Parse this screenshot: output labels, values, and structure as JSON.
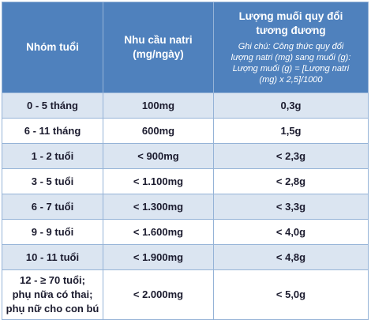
{
  "table": {
    "header": [
      [
        "Nhóm tuổi"
      ],
      [
        "Nhu cầu natri",
        "(mg/ngày)"
      ],
      [
        "Lượng muối quy đổi",
        "tương đương"
      ]
    ],
    "note": [
      "Ghi chú: Công thức quy đổi",
      "lượng natri (mg) sang muối (g):",
      "Lượng muối (g) = [Lượng natri",
      "(mg) x 2,5]/1000"
    ],
    "rows": [
      [
        [
          "0 - 5 tháng"
        ],
        [
          "100mg"
        ],
        [
          "0,3g"
        ]
      ],
      [
        [
          "6 - 11 tháng"
        ],
        [
          "600mg"
        ],
        [
          "1,5g"
        ]
      ],
      [
        [
          "1 - 2 tuổi"
        ],
        [
          "< 900mg"
        ],
        [
          "< 2,3g"
        ]
      ],
      [
        [
          "3 - 5 tuổi"
        ],
        [
          "< 1.100mg"
        ],
        [
          "< 2,8g"
        ]
      ],
      [
        [
          "6 - 7 tuổi"
        ],
        [
          "< 1.300mg"
        ],
        [
          "< 3,3g"
        ]
      ],
      [
        [
          "9 - 9 tuổi"
        ],
        [
          "< 1.600mg"
        ],
        [
          "< 4,0g"
        ]
      ],
      [
        [
          "10 - 11 tuổi"
        ],
        [
          "< 1.900mg"
        ],
        [
          "< 4,8g"
        ]
      ],
      [
        [
          "12 - ≥ 70 tuổi;",
          "phụ nữa có thai;",
          "phụ nữ cho con bú"
        ],
        [
          "< 2.000mg"
        ],
        [
          "< 5,0g"
        ]
      ]
    ]
  }
}
